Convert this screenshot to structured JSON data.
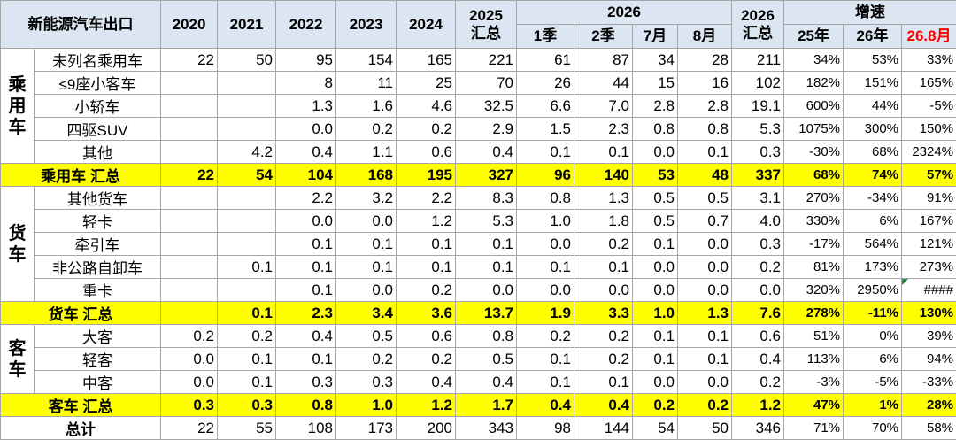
{
  "table": {
    "corner": "新能源汽车出口",
    "year_cols": [
      "2020",
      "2021",
      "2022",
      "2023",
      "2024"
    ],
    "total_2025": {
      "top": "2025",
      "bottom": "汇总"
    },
    "group_2026": "2026",
    "sub_2026": [
      "1季",
      "2季",
      "7月",
      "8月"
    ],
    "total_2026": {
      "top": "2026",
      "bottom": "汇总"
    },
    "growth": "增速",
    "growth_cols": [
      "25年",
      "26年",
      "26.8月"
    ],
    "groups": [
      {
        "label": "乘用车",
        "rows": [
          {
            "name": "未列名乘用车",
            "cells": [
              "22",
              "50",
              "95",
              "154",
              "165",
              "221",
              "61",
              "87",
              "34",
              "28",
              "211",
              "34%",
              "53%",
              "33%"
            ]
          },
          {
            "name": "≤9座小客车",
            "cells": [
              null,
              null,
              "8",
              "11",
              "25",
              "70",
              "26",
              "44",
              "15",
              "16",
              "102",
              "182%",
              "151%",
              "165%"
            ]
          },
          {
            "name": "小轿车",
            "cells": [
              null,
              null,
              "1.3",
              "1.6",
              "4.6",
              "32.5",
              "6.6",
              "7.0",
              "2.8",
              "2.8",
              "19.1",
              "600%",
              "44%",
              "-5%"
            ]
          },
          {
            "name": "四驱SUV",
            "cells": [
              null,
              null,
              "0.0",
              "0.2",
              "0.2",
              "2.9",
              "1.5",
              "2.3",
              "0.8",
              "0.8",
              "5.3",
              "1075%",
              "300%",
              "150%"
            ]
          },
          {
            "name": "其他",
            "cells": [
              null,
              "4.2",
              "0.4",
              "1.1",
              "0.6",
              "0.4",
              "0.1",
              "0.1",
              "0.0",
              "0.1",
              "0.3",
              "-30%",
              "68%",
              "2324%"
            ]
          }
        ],
        "subtotal": {
          "name": "乘用车 汇总",
          "cells": [
            "22",
            "54",
            "104",
            "168",
            "195",
            "327",
            "96",
            "140",
            "53",
            "48",
            "337",
            "68%",
            "74%",
            "57%"
          ]
        }
      },
      {
        "label": "货车",
        "rows": [
          {
            "name": "其他货车",
            "cells": [
              null,
              null,
              "2.2",
              "3.2",
              "2.2",
              "8.3",
              "0.8",
              "1.3",
              "0.5",
              "0.5",
              "3.1",
              "270%",
              "-34%",
              "91%"
            ]
          },
          {
            "name": "轻卡",
            "cells": [
              null,
              null,
              "0.0",
              "0.0",
              "1.2",
              "5.3",
              "1.0",
              "1.8",
              "0.5",
              "0.7",
              "4.0",
              "330%",
              "6%",
              "167%"
            ]
          },
          {
            "name": "牵引车",
            "cells": [
              null,
              null,
              "0.1",
              "0.1",
              "0.1",
              "0.1",
              "0.0",
              "0.2",
              "0.1",
              "0.0",
              "0.3",
              "-17%",
              "564%",
              "121%"
            ]
          },
          {
            "name": "非公路自卸车",
            "cells": [
              null,
              "0.1",
              "0.1",
              "0.1",
              "0.1",
              "0.1",
              "0.1",
              "0.1",
              "0.0",
              "0.0",
              "0.2",
              "81%",
              "173%",
              "273%"
            ]
          },
          {
            "name": "重卡",
            "cells": [
              null,
              null,
              "0.1",
              "0.0",
              "0.2",
              "0.0",
              "0.0",
              "0.0",
              "0.0",
              "0.0",
              "0.0",
              "320%",
              "2950%",
              "####"
            ]
          }
        ],
        "subtotal": {
          "name": "货车 汇总",
          "cells": [
            null,
            "0.1",
            "2.3",
            "3.4",
            "3.6",
            "13.7",
            "1.9",
            "3.3",
            "1.0",
            "1.3",
            "7.6",
            "278%",
            "-11%",
            "130%"
          ]
        }
      },
      {
        "label": "客车",
        "rows": [
          {
            "name": "大客",
            "cells": [
              "0.2",
              "0.2",
              "0.4",
              "0.5",
              "0.6",
              "0.8",
              "0.2",
              "0.2",
              "0.1",
              "0.1",
              "0.6",
              "51%",
              "0%",
              "39%"
            ]
          },
          {
            "name": "轻客",
            "cells": [
              "0.0",
              "0.1",
              "0.1",
              "0.2",
              "0.2",
              "0.5",
              "0.1",
              "0.2",
              "0.1",
              "0.1",
              "0.4",
              "113%",
              "6%",
              "94%"
            ]
          },
          {
            "name": "中客",
            "cells": [
              "0.0",
              "0.1",
              "0.3",
              "0.3",
              "0.4",
              "0.4",
              "0.1",
              "0.1",
              "0.0",
              "0.0",
              "0.2",
              "-3%",
              "-5%",
              "-33%"
            ]
          }
        ],
        "subtotal": {
          "name": "客车 汇总",
          "cells": [
            "0.3",
            "0.3",
            "0.8",
            "1.0",
            "1.2",
            "1.7",
            "0.4",
            "0.4",
            "0.2",
            "0.2",
            "1.2",
            "47%",
            "1%",
            "28%"
          ]
        }
      }
    ],
    "total": {
      "name": "总计",
      "cells": [
        "22",
        "55",
        "108",
        "173",
        "200",
        "343",
        "98",
        "144",
        "54",
        "50",
        "346",
        "71%",
        "70%",
        "58%"
      ]
    }
  }
}
